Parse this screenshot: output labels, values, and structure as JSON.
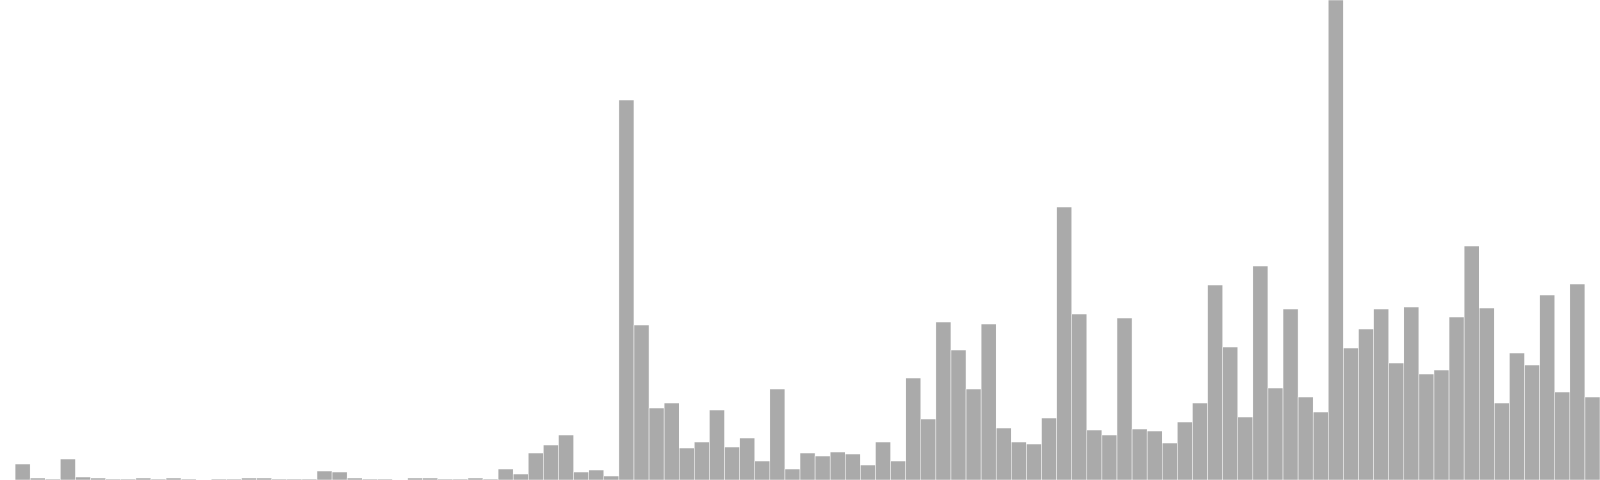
{
  "chart_data": {
    "type": "bar",
    "title": "",
    "xlabel": "",
    "ylabel": "",
    "ylim": [
      0,
      480
    ],
    "grid": false,
    "legend": "none",
    "colors": {
      "bar": "#aaaaaa",
      "bar_edge": "#ffffff",
      "background": "#ffffff"
    },
    "values": [
      0,
      16,
      2,
      1,
      21,
      3,
      2,
      1,
      1,
      2,
      1,
      2,
      1,
      0,
      1,
      1,
      2,
      2,
      1,
      1,
      1,
      9,
      8,
      2,
      1,
      1,
      0,
      2,
      2,
      1,
      1,
      2,
      1,
      11,
      6,
      27,
      35,
      45,
      8,
      10,
      4,
      380,
      155,
      72,
      77,
      32,
      38,
      70,
      33,
      42,
      19,
      91,
      11,
      27,
      24,
      28,
      26,
      15,
      38,
      19,
      102,
      61,
      158,
      130,
      91,
      156,
      52,
      38,
      36,
      62,
      273,
      166,
      50,
      45,
      162,
      51,
      49,
      37,
      58,
      77,
      195,
      133,
      63,
      214,
      92,
      171,
      83,
      68,
      480,
      132,
      151,
      171,
      117,
      173,
      106,
      110,
      163,
      234,
      172,
      77,
      127,
      115,
      185,
      88,
      196,
      83
    ]
  }
}
